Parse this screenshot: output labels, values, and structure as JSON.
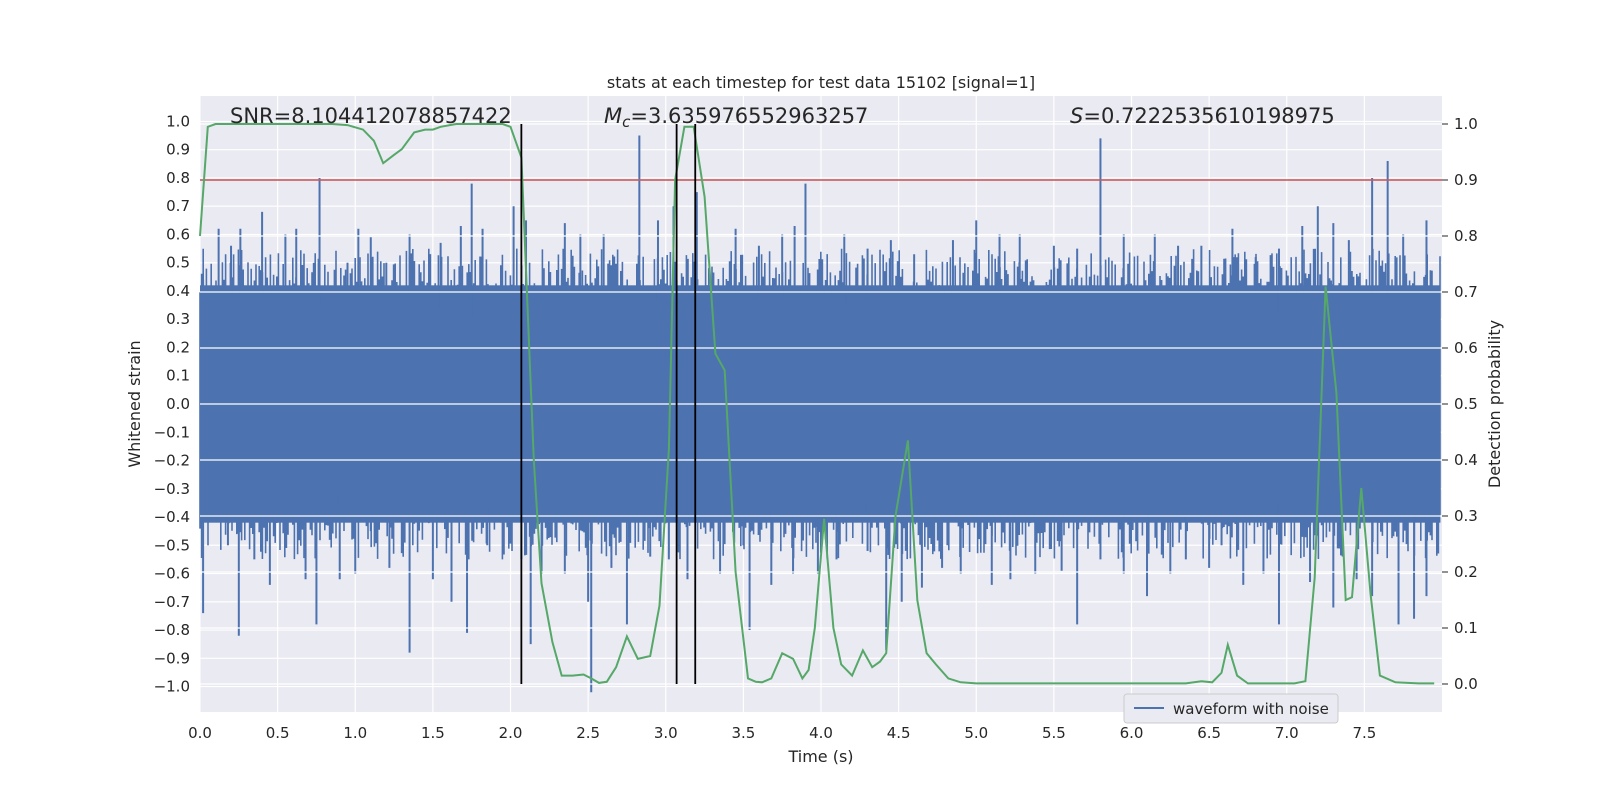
{
  "chart_data": {
    "type": "line",
    "title": "stats at each timestep for test data 15102 [signal=1]",
    "xlabel": "Time (s)",
    "ylabel": "Whitened strain",
    "y2label": "Detection probability",
    "xlim": [
      0,
      8
    ],
    "ylim": [
      -1.09,
      1.09
    ],
    "y2lim": [
      -0.05,
      1.05
    ],
    "x_ticks": [
      0.0,
      0.5,
      1.0,
      1.5,
      2.0,
      2.5,
      3.0,
      3.5,
      4.0,
      4.5,
      5.0,
      5.5,
      6.0,
      6.5,
      7.0,
      7.5
    ],
    "x_tick_labels": [
      "0.0",
      "0.5",
      "1.0",
      "1.5",
      "2.0",
      "2.5",
      "3.0",
      "3.5",
      "4.0",
      "4.5",
      "5.0",
      "5.5",
      "6.0",
      "6.5",
      "7.0",
      "7.5"
    ],
    "y_ticks": [
      1.0,
      0.9,
      0.8,
      0.7,
      0.6,
      0.5,
      0.4,
      0.3,
      0.2,
      0.1,
      0.0,
      -0.1,
      -0.2,
      -0.3,
      -0.4,
      -0.5,
      -0.6,
      -0.7,
      -0.8,
      -0.9,
      -1.0
    ],
    "y_tick_labels": [
      "1.0",
      "0.9",
      "0.8",
      "0.7",
      "0.6",
      "0.5",
      "0.4",
      "0.3",
      "0.2",
      "0.1",
      "0.0",
      "−0.1",
      "−0.2",
      "−0.3",
      "−0.4",
      "−0.5",
      "−0.6",
      "−0.7",
      "−0.8",
      "−0.9",
      "−1.0"
    ],
    "y2_ticks": [
      1.0,
      0.9,
      0.8,
      0.7,
      0.6,
      0.5,
      0.4,
      0.3,
      0.2,
      0.1,
      0.0
    ],
    "y2_tick_labels": [
      "1.0",
      "0.9",
      "0.8",
      "0.7",
      "0.6",
      "0.5",
      "0.4",
      "0.3",
      "0.2",
      "0.1",
      "0.0"
    ],
    "annotations": {
      "snr": "SNR=8.104412078857422",
      "mc_symbol": "M",
      "mc_subscript": "c",
      "mc_value": "=3.635976552963257",
      "s_symbol": "S",
      "s_value": "=0.7222535610198975"
    },
    "legend": {
      "label": "waveform with noise",
      "position": "lower-right"
    },
    "threshold_line": {
      "y2": 0.9,
      "color": "#c44e52"
    },
    "vertical_lines_x": [
      2.07,
      3.07,
      3.19
    ],
    "vertical_lines_range_y2": [
      0.0,
      1.0
    ],
    "detection_probability": {
      "color": "#55a868",
      "x": [
        0.0,
        0.05,
        0.1,
        0.15,
        0.25,
        0.35,
        0.45,
        0.55,
        0.65,
        0.75,
        0.85,
        0.95,
        1.05,
        1.12,
        1.18,
        1.25,
        1.3,
        1.38,
        1.45,
        1.5,
        1.55,
        1.65,
        1.75,
        1.85,
        1.95,
        2.0,
        2.07,
        2.15,
        2.2,
        2.27,
        2.33,
        2.4,
        2.47,
        2.52,
        2.57,
        2.62,
        2.68,
        2.75,
        2.82,
        2.9,
        2.96,
        3.02,
        3.06,
        3.12,
        3.18,
        3.25,
        3.32,
        3.38,
        3.45,
        3.53,
        3.58,
        3.62,
        3.68,
        3.75,
        3.82,
        3.88,
        3.92,
        3.96,
        4.02,
        4.08,
        4.13,
        4.2,
        4.27,
        4.33,
        4.38,
        4.42,
        4.48,
        4.56,
        4.62,
        4.68,
        4.74,
        4.82,
        4.9,
        5.0,
        5.2,
        5.5,
        5.8,
        6.0,
        6.2,
        6.35,
        6.45,
        6.52,
        6.58,
        6.62,
        6.68,
        6.75,
        6.85,
        6.95,
        7.05,
        7.12,
        7.18,
        7.25,
        7.32,
        7.38,
        7.42,
        7.48,
        7.54,
        7.6,
        7.7,
        7.85,
        7.95
      ],
      "values": [
        0.8,
        0.995,
        1.0,
        1.0,
        1.0,
        1.0,
        1.0,
        1.0,
        1.0,
        1.0,
        1.0,
        0.998,
        0.99,
        0.97,
        0.93,
        0.945,
        0.955,
        0.985,
        0.99,
        0.99,
        0.995,
        1.0,
        1.0,
        1.0,
        1.0,
        0.995,
        0.94,
        0.4,
        0.18,
        0.075,
        0.015,
        0.015,
        0.017,
        0.01,
        0.002,
        0.004,
        0.03,
        0.085,
        0.045,
        0.05,
        0.14,
        0.42,
        0.9,
        0.995,
        0.995,
        0.87,
        0.59,
        0.56,
        0.2,
        0.01,
        0.004,
        0.003,
        0.01,
        0.055,
        0.045,
        0.01,
        0.025,
        0.1,
        0.295,
        0.1,
        0.035,
        0.015,
        0.06,
        0.03,
        0.04,
        0.055,
        0.3,
        0.435,
        0.15,
        0.055,
        0.035,
        0.01,
        0.003,
        0.001,
        0.001,
        0.001,
        0.001,
        0.001,
        0.001,
        0.001,
        0.005,
        0.003,
        0.02,
        0.07,
        0.015,
        0.001,
        0.001,
        0.001,
        0.001,
        0.005,
        0.19,
        0.71,
        0.52,
        0.15,
        0.155,
        0.35,
        0.16,
        0.015,
        0.003,
        0.001,
        0.001
      ]
    },
    "waveform": {
      "color": "#4c72b0",
      "description_series": "whitened strain noise",
      "band_lo": -0.42,
      "band_hi": 0.42,
      "spikes_up": [
        [
          0.02,
          0.44
        ],
        [
          0.12,
          0.62
        ],
        [
          0.2,
          0.56
        ],
        [
          0.26,
          0.62
        ],
        [
          0.4,
          0.68
        ],
        [
          0.55,
          0.6
        ],
        [
          0.62,
          0.62
        ],
        [
          0.77,
          0.8
        ],
        [
          0.95,
          0.5
        ],
        [
          1.02,
          0.62
        ],
        [
          1.1,
          0.59
        ],
        [
          1.2,
          0.5
        ],
        [
          1.35,
          0.6
        ],
        [
          1.55,
          0.57
        ],
        [
          1.68,
          0.63
        ],
        [
          1.75,
          0.78
        ],
        [
          1.82,
          0.62
        ],
        [
          2.02,
          0.7
        ],
        [
          2.1,
          0.65
        ],
        [
          2.35,
          0.64
        ],
        [
          2.45,
          0.6
        ],
        [
          2.6,
          0.6
        ],
        [
          2.83,
          0.95
        ],
        [
          2.95,
          0.65
        ],
        [
          3.05,
          0.7
        ],
        [
          3.2,
          0.75
        ],
        [
          3.45,
          0.62
        ],
        [
          3.6,
          0.56
        ],
        [
          3.75,
          0.6
        ],
        [
          3.83,
          0.63
        ],
        [
          3.9,
          0.78
        ],
        [
          4.15,
          0.6
        ],
        [
          4.3,
          0.55
        ],
        [
          4.45,
          0.58
        ],
        [
          4.6,
          0.53
        ],
        [
          4.85,
          0.58
        ],
        [
          5.0,
          0.65
        ],
        [
          5.15,
          0.6
        ],
        [
          5.28,
          0.6
        ],
        [
          5.5,
          0.56
        ],
        [
          5.65,
          0.55
        ],
        [
          5.8,
          0.94
        ],
        [
          5.95,
          0.6
        ],
        [
          6.15,
          0.6
        ],
        [
          6.3,
          0.56
        ],
        [
          6.45,
          0.56
        ],
        [
          6.65,
          0.62
        ],
        [
          6.8,
          0.52
        ],
        [
          6.95,
          0.55
        ],
        [
          7.1,
          0.63
        ],
        [
          7.2,
          0.7
        ],
        [
          7.3,
          0.64
        ],
        [
          7.4,
          0.58
        ],
        [
          7.55,
          0.8
        ],
        [
          7.65,
          0.86
        ],
        [
          7.75,
          0.6
        ],
        [
          7.9,
          0.65
        ]
      ],
      "spikes_down": [
        [
          0.02,
          -0.74
        ],
        [
          0.18,
          -0.5
        ],
        [
          0.25,
          -0.82
        ],
        [
          0.35,
          -0.55
        ],
        [
          0.45,
          -0.64
        ],
        [
          0.55,
          -0.5
        ],
        [
          0.68,
          -0.62
        ],
        [
          0.75,
          -0.78
        ],
        [
          0.9,
          -0.62
        ],
        [
          1.0,
          -0.6
        ],
        [
          1.1,
          -0.45
        ],
        [
          1.22,
          -0.58
        ],
        [
          1.35,
          -0.88
        ],
        [
          1.5,
          -0.62
        ],
        [
          1.62,
          -0.7
        ],
        [
          1.72,
          -0.81
        ],
        [
          1.85,
          -0.5
        ],
        [
          2.07,
          -0.55
        ],
        [
          2.13,
          -0.85
        ],
        [
          2.2,
          -0.6
        ],
        [
          2.35,
          -0.6
        ],
        [
          2.5,
          -0.7
        ],
        [
          2.52,
          -1.02
        ],
        [
          2.65,
          -0.58
        ],
        [
          2.75,
          -0.78
        ],
        [
          2.9,
          -0.54
        ],
        [
          3.02,
          -0.55
        ],
        [
          3.14,
          -0.62
        ],
        [
          3.35,
          -0.6
        ],
        [
          3.5,
          -0.5
        ],
        [
          3.54,
          -0.8
        ],
        [
          3.68,
          -0.64
        ],
        [
          3.82,
          -0.6
        ],
        [
          3.98,
          -0.6
        ],
        [
          4.1,
          -0.55
        ],
        [
          4.3,
          -0.52
        ],
        [
          4.42,
          -0.87
        ],
        [
          4.52,
          -0.7
        ],
        [
          4.65,
          -0.65
        ],
        [
          4.78,
          -0.58
        ],
        [
          4.9,
          -0.6
        ],
        [
          5.1,
          -0.64
        ],
        [
          5.22,
          -0.62
        ],
        [
          5.38,
          -0.6
        ],
        [
          5.55,
          -0.59
        ],
        [
          5.65,
          -0.78
        ],
        [
          5.8,
          -0.55
        ],
        [
          5.95,
          -0.6
        ],
        [
          6.1,
          -0.68
        ],
        [
          6.25,
          -0.6
        ],
        [
          6.35,
          -0.55
        ],
        [
          6.5,
          -0.58
        ],
        [
          6.58,
          -0.5
        ],
        [
          6.72,
          -0.64
        ],
        [
          6.85,
          -0.6
        ],
        [
          6.95,
          -0.78
        ],
        [
          7.15,
          -0.63
        ],
        [
          7.3,
          -0.72
        ],
        [
          7.45,
          -0.62
        ],
        [
          7.55,
          -0.68
        ],
        [
          7.72,
          -0.78
        ],
        [
          7.82,
          -0.76
        ],
        [
          7.9,
          -0.68
        ]
      ]
    }
  }
}
